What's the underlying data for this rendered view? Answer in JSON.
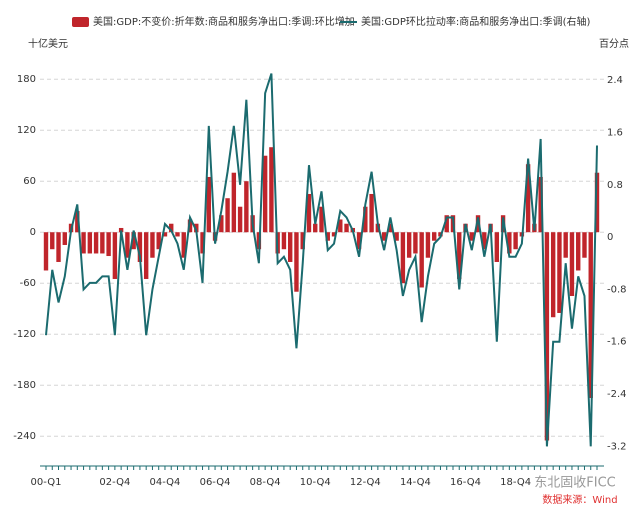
{
  "chart_data": {
    "type": "bar_line",
    "y_axis_label": "十亿美元",
    "y2_axis_label": "百分点",
    "watermark": "东北固收FICC",
    "source": "数据来源：Wind",
    "categories": [
      "00-Q1",
      null,
      null,
      null,
      null,
      null,
      null,
      null,
      null,
      null,
      null,
      "02-Q4",
      null,
      null,
      null,
      null,
      null,
      null,
      null,
      "04-Q4",
      null,
      null,
      null,
      null,
      null,
      null,
      null,
      "06-Q4",
      null,
      null,
      null,
      null,
      null,
      null,
      null,
      "08-Q4",
      null,
      null,
      null,
      null,
      null,
      null,
      null,
      "10-Q4",
      null,
      null,
      null,
      null,
      null,
      null,
      null,
      "12-Q4",
      null,
      null,
      null,
      null,
      null,
      null,
      null,
      "14-Q4",
      null,
      null,
      null,
      null,
      null,
      null,
      null,
      "16-Q4",
      null,
      null,
      null,
      null,
      null,
      null,
      null,
      "18-Q4",
      null,
      null,
      null,
      null,
      null,
      null,
      null,
      null,
      null,
      null,
      null,
      null,
      null
    ],
    "series": [
      {
        "name": "美国:GDP:不变价:折年数:商品和服务净出口:季调:环比增加",
        "type": "bar",
        "color": "#c0252b",
        "values": [
          -45,
          -20,
          -35,
          -15,
          10,
          25,
          -25,
          -25,
          -25,
          -25,
          -28,
          -55,
          5,
          -30,
          -20,
          -35,
          -55,
          -30,
          -20,
          -5,
          10,
          -5,
          -30,
          15,
          10,
          -25,
          65,
          -10,
          20,
          40,
          70,
          30,
          60,
          20,
          -20,
          90,
          100,
          -25,
          -20,
          -35,
          -70,
          -20,
          45,
          10,
          30,
          -10,
          -5,
          15,
          10,
          5,
          -20,
          30,
          45,
          10,
          -10,
          10,
          -10,
          -60,
          -30,
          -25,
          -65,
          -30,
          -10,
          -5,
          20,
          20,
          -55,
          10,
          -10,
          20,
          -20,
          10,
          -35,
          20,
          -25,
          -20,
          -5,
          80,
          10,
          65,
          -245,
          -100,
          -95,
          -30,
          -75,
          -45,
          -30,
          -195,
          70
        ]
      },
      {
        "name": "美国:GDP环比拉动率:商品和服务净出口:季调(右轴)",
        "type": "line",
        "axis": "y2",
        "color": "#1b6b6f",
        "values": [
          -1.5,
          -0.5,
          -1.0,
          -0.6,
          0.1,
          0.5,
          -0.8,
          -0.7,
          -0.7,
          -0.6,
          -0.6,
          -1.5,
          0.1,
          -0.5,
          0.1,
          -0.3,
          -1.5,
          -0.8,
          -0.3,
          0.2,
          0.1,
          -0.1,
          -0.5,
          0.3,
          0.1,
          -0.7,
          1.7,
          -0.1,
          0.4,
          1.0,
          1.7,
          0.8,
          2.1,
          0.2,
          -0.4,
          2.2,
          2.5,
          -0.4,
          -0.3,
          -0.5,
          -1.7,
          -0.4,
          1.1,
          0.2,
          0.7,
          -0.2,
          -0.1,
          0.4,
          0.3,
          0.1,
          -0.3,
          0.5,
          1.0,
          0.2,
          -0.2,
          0.3,
          -0.2,
          -0.9,
          -0.5,
          -0.3,
          -1.3,
          -0.6,
          -0.1,
          0.0,
          0.3,
          0.3,
          -0.8,
          0.2,
          -0.2,
          0.3,
          -0.3,
          0.2,
          -1.6,
          0.3,
          -0.3,
          -0.3,
          -0.1,
          1.2,
          0.1,
          1.5,
          -3.2,
          -1.6,
          -1.6,
          -0.4,
          -1.4,
          -0.6,
          -0.9,
          -3.2,
          1.4
        ]
      }
    ],
    "ylim": [
      -275,
      212
    ],
    "yticks": [
      -240,
      -180,
      -120,
      -60,
      0,
      60,
      120,
      180
    ],
    "y2lim": [
      -3.5,
      2.83
    ],
    "y2ticks": [
      -3.2,
      -2.4,
      -1.6,
      -0.8,
      0,
      0.8,
      1.6,
      2.4
    ],
    "grid": true
  }
}
